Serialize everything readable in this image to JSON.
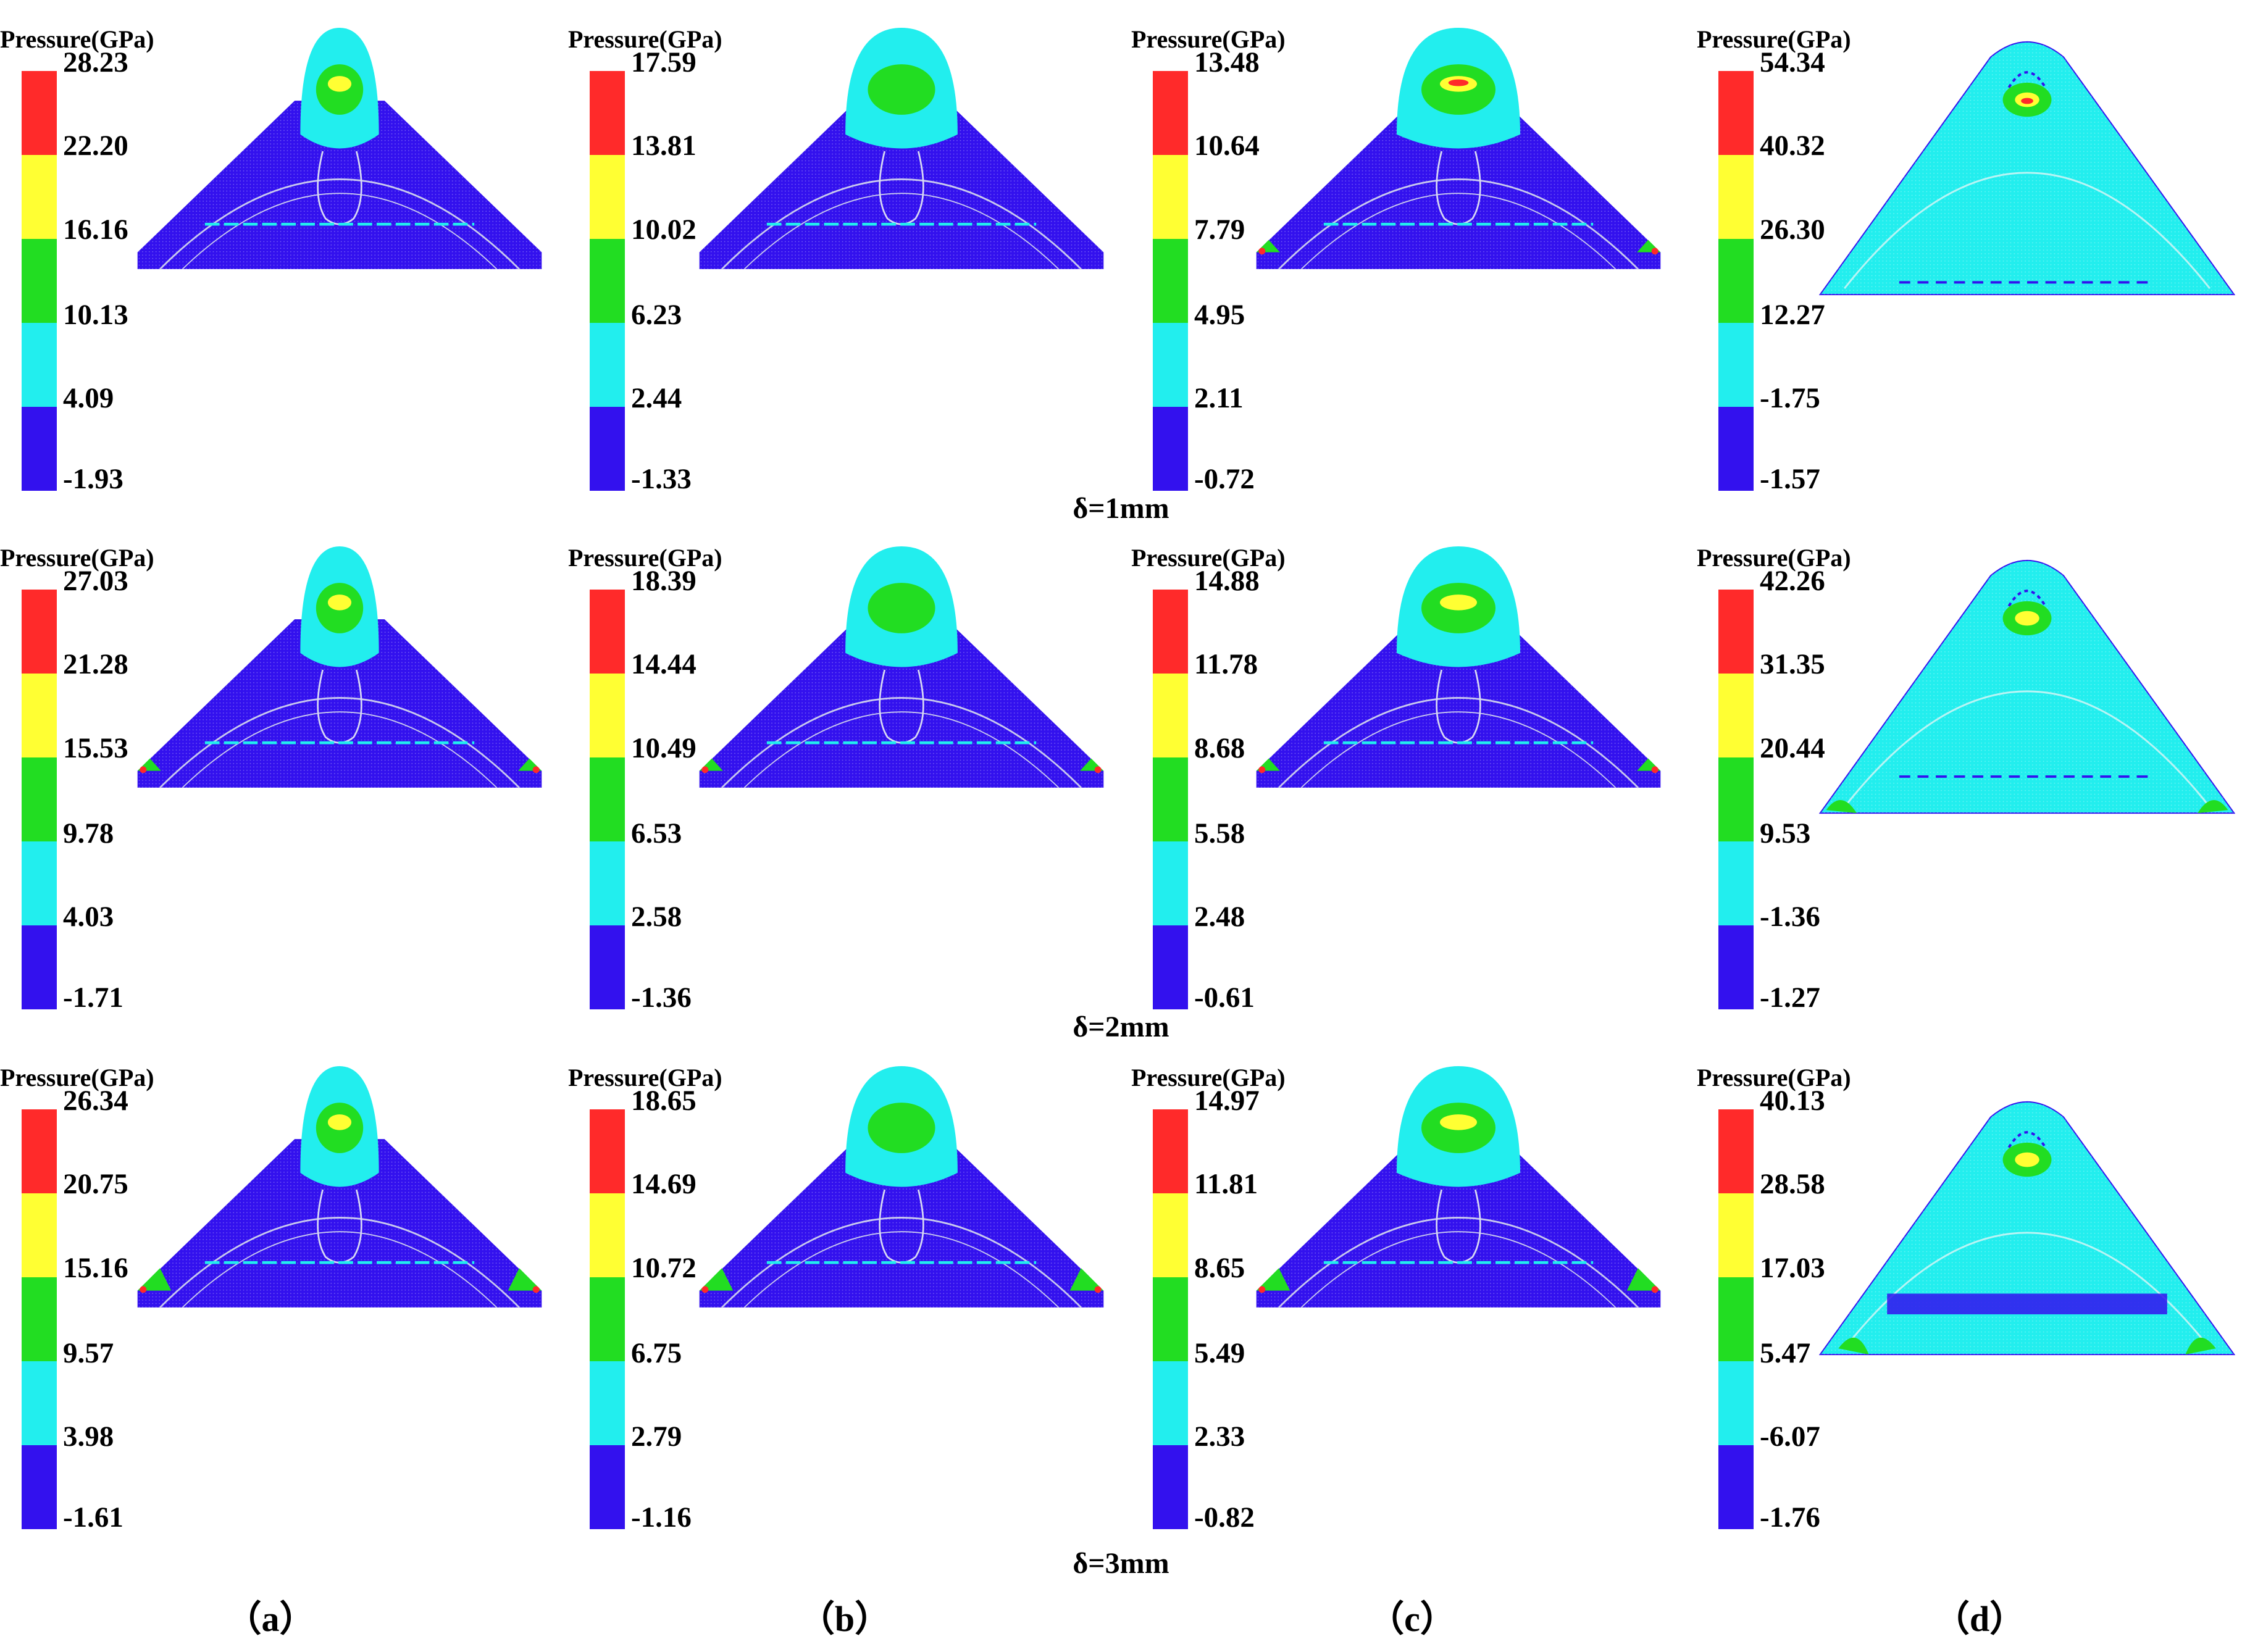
{
  "legend_title": "Pressure(GPa)",
  "band_colors": [
    "#ff2a2a",
    "#ffff33",
    "#22dd22",
    "#22eeee",
    "#3311ee"
  ],
  "rows": [
    {
      "label": "δ=1mm",
      "panels": [
        {
          "labels": [
            "28.23",
            "22.20",
            "16.16",
            "10.13",
            "4.09",
            "-1.93"
          ]
        },
        {
          "labels": [
            "17.59",
            "13.81",
            "10.02",
            "6.23",
            "2.44",
            "-1.33"
          ]
        },
        {
          "labels": [
            "13.48",
            "10.64",
            "7.79",
            "4.95",
            "2.11",
            "-0.72"
          ]
        },
        {
          "labels": [
            "54.34",
            "40.32",
            "26.30",
            "12.27",
            "-1.75",
            "-1.57"
          ]
        }
      ]
    },
    {
      "label": "δ=2mm",
      "panels": [
        {
          "labels": [
            "27.03",
            "21.28",
            "15.53",
            "9.78",
            "4.03",
            "-1.71"
          ]
        },
        {
          "labels": [
            "18.39",
            "14.44",
            "10.49",
            "6.53",
            "2.58",
            "-1.36"
          ]
        },
        {
          "labels": [
            "14.88",
            "11.78",
            "8.68",
            "5.58",
            "2.48",
            "-0.61"
          ]
        },
        {
          "labels": [
            "42.26",
            "31.35",
            "20.44",
            "9.53",
            "-1.36",
            "-1.27"
          ]
        }
      ]
    },
    {
      "label": "δ=3mm",
      "panels": [
        {
          "labels": [
            "26.34",
            "20.75",
            "15.16",
            "9.57",
            "3.98",
            "-1.61"
          ]
        },
        {
          "labels": [
            "18.65",
            "14.69",
            "10.72",
            "6.75",
            "2.79",
            "-1.16"
          ]
        },
        {
          "labels": [
            "14.97",
            "11.81",
            "8.65",
            "5.49",
            "2.33",
            "-0.82"
          ]
        },
        {
          "labels": [
            "40.13",
            "28.58",
            "17.03",
            "5.47",
            "-6.07",
            "-1.76"
          ]
        }
      ]
    }
  ],
  "columns": [
    "（a）",
    "（b）",
    "（c）",
    "（d）"
  ]
}
